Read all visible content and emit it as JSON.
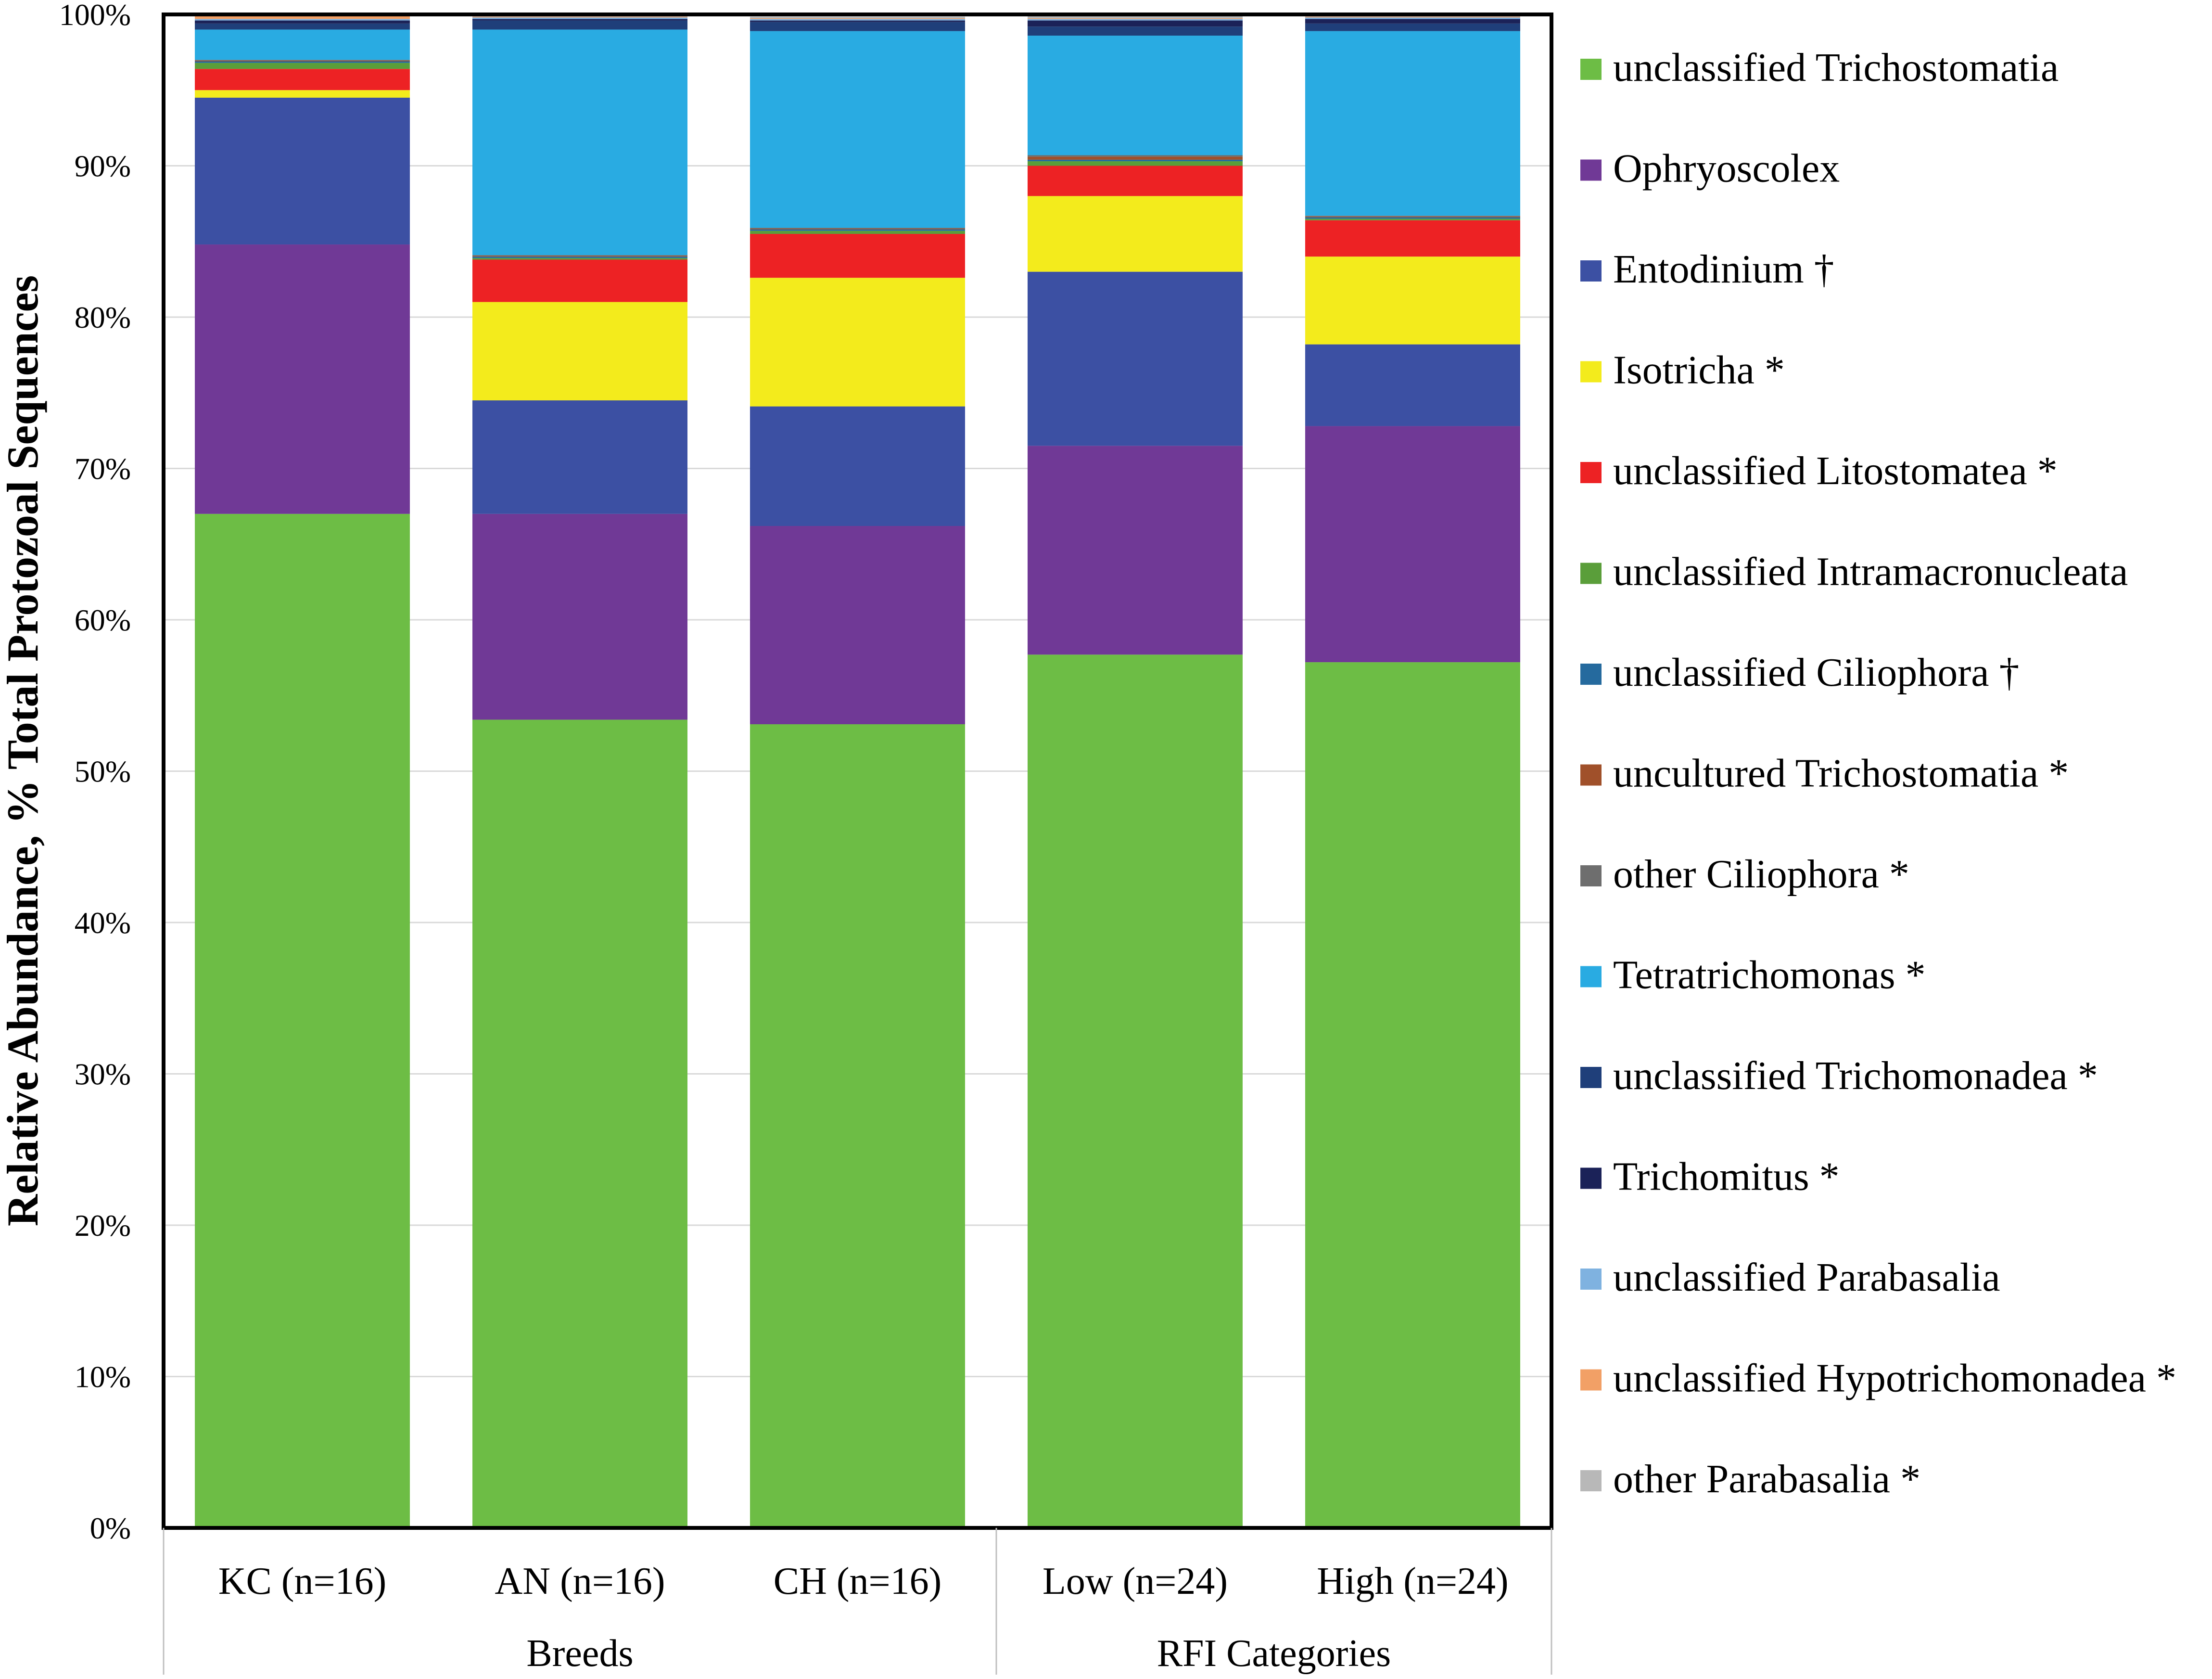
{
  "chart_data": {
    "type": "bar",
    "stacked": true,
    "ylabel": "Relative Abundance,  % Total Protozoal Sequences",
    "ylim": [
      0,
      100
    ],
    "yticks": [
      "0%",
      "10%",
      "20%",
      "30%",
      "40%",
      "50%",
      "60%",
      "70%",
      "80%",
      "90%",
      "100%"
    ],
    "grid": true,
    "legend_position": "right",
    "categories": [
      "KC (n=16)",
      "AN (n=16)",
      "CH (n=16)",
      "Low (n=24)",
      "High (n=24)"
    ],
    "groups": [
      {
        "label": "Breeds",
        "categories": [
          "KC (n=16)",
          "AN (n=16)",
          "CH (n=16)"
        ]
      },
      {
        "label": "RFI Categories",
        "categories": [
          "Low (n=24)",
          "High (n=24)"
        ]
      }
    ],
    "series": [
      {
        "name": "unclassified Trichostomatia",
        "color": "#6dbd45",
        "values": [
          67.0,
          53.4,
          53.1,
          57.7,
          57.2
        ]
      },
      {
        "name": "Ophryoscolex",
        "color": "#703996",
        "values": [
          17.8,
          13.6,
          13.1,
          13.8,
          15.6
        ]
      },
      {
        "name": "Entodinium †",
        "color": "#3c50a3",
        "values": [
          9.7,
          7.5,
          7.9,
          11.5,
          5.4
        ]
      },
      {
        "name": "Isotricha *",
        "color": "#f3eb1c",
        "values": [
          0.5,
          6.5,
          8.5,
          5.0,
          5.8
        ]
      },
      {
        "name": "unclassified Litostomatea *",
        "color": "#ed2224",
        "values": [
          1.4,
          2.8,
          2.9,
          2.0,
          2.4
        ]
      },
      {
        "name": "unclassified Intramacronucleata",
        "color": "#5a9e3a",
        "values": [
          0.4,
          0.1,
          0.2,
          0.3,
          0.1
        ]
      },
      {
        "name": "unclassified Ciliophora †",
        "color": "#256a9e",
        "values": [
          0.1,
          0.1,
          0.1,
          0.1,
          0.1
        ]
      },
      {
        "name": "uncultured Trichostomatia *",
        "color": "#a0502a",
        "values": [
          0.05,
          0.05,
          0.05,
          0.2,
          0.05
        ]
      },
      {
        "name": "other Ciliophora *",
        "color": "#6e6e6e",
        "values": [
          0.05,
          0.05,
          0.05,
          0.1,
          0.05
        ]
      },
      {
        "name": "Tetratrichomonas *",
        "color": "#29abe2",
        "values": [
          2.0,
          14.9,
          13.0,
          7.9,
          12.2
        ]
      },
      {
        "name": "unclassified Trichomonadea *",
        "color": "#1f3f7a",
        "values": [
          0.4,
          0.6,
          0.6,
          0.6,
          0.5
        ]
      },
      {
        "name": "Trichomitus *",
        "color": "#1b2258",
        "values": [
          0.2,
          0.1,
          0.1,
          0.4,
          0.3
        ]
      },
      {
        "name": "unclassified Parabasalia",
        "color": "#7fb2e0",
        "values": [
          0.1,
          0.1,
          0.1,
          0.1,
          0.1
        ]
      },
      {
        "name": "unclassified Hypotrichomonadea *",
        "color": "#f2a066",
        "values": [
          0.2,
          0.05,
          0.05,
          0.05,
          0.05
        ]
      },
      {
        "name": "other Parabasalia *",
        "color": "#b8b8b8",
        "values": [
          0.1,
          0.15,
          0.1,
          0.25,
          0.15
        ]
      }
    ]
  }
}
